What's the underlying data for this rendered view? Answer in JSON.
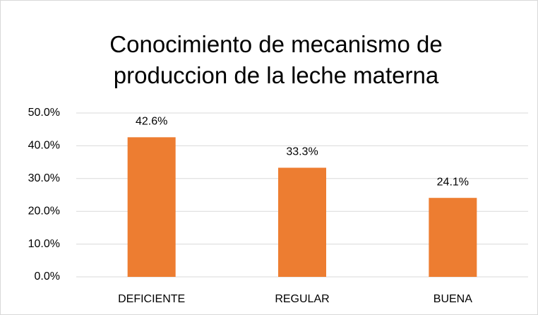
{
  "chart_data": {
    "type": "bar",
    "title": "Conocimiento de mecanismo de produccion de la leche materna",
    "categories": [
      "DEFICIENTE",
      "REGULAR",
      "BUENA"
    ],
    "values": [
      42.6,
      33.3,
      24.1
    ],
    "value_labels": [
      "42.6%",
      "33.3%",
      "24.1%"
    ],
    "color": "#ed7d31",
    "ylim": [
      0,
      50
    ],
    "yticks": [
      {
        "value": 0,
        "label": "0.0%"
      },
      {
        "value": 10,
        "label": "10.0%"
      },
      {
        "value": 20,
        "label": "20.0%"
      },
      {
        "value": 30,
        "label": "30.0%"
      },
      {
        "value": 40,
        "label": "40.0%"
      },
      {
        "value": 50,
        "label": "50.0%"
      }
    ],
    "grid": true
  }
}
